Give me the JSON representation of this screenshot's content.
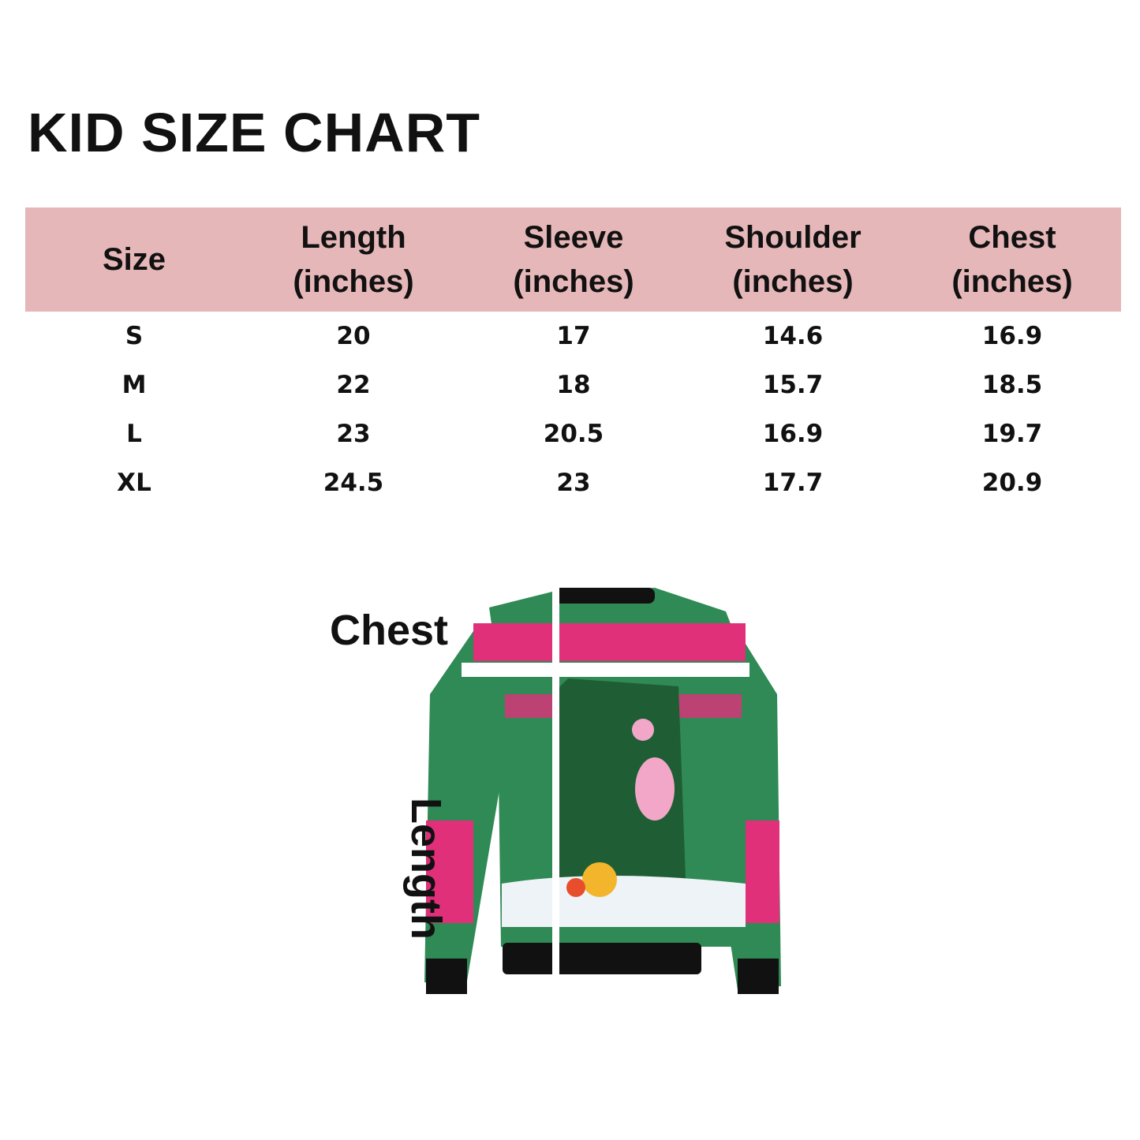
{
  "title": "KID SIZE CHART",
  "table": {
    "headers": [
      {
        "line1": "Size",
        "line2": ""
      },
      {
        "line1": "Length",
        "line2": "(inches)"
      },
      {
        "line1": "Sleeve",
        "line2": "(inches)"
      },
      {
        "line1": "Shoulder",
        "line2": "(inches)"
      },
      {
        "line1": "Chest",
        "line2": "(inches)"
      }
    ],
    "rows": [
      [
        "S",
        "20",
        "17",
        "14.6",
        "16.9"
      ],
      [
        "M",
        "22",
        "18",
        "15.7",
        "18.5"
      ],
      [
        "L",
        "23",
        "20.5",
        "16.9",
        "19.7"
      ],
      [
        "XL",
        "24.5",
        "23",
        "17.7",
        "20.9"
      ]
    ]
  },
  "diagram": {
    "chest_label": "Chest",
    "length_label": "Length"
  },
  "colors": {
    "header_band": "#e6b7b8",
    "sweater_green": "#2f8a55",
    "sweater_pink": "#e0307a"
  }
}
